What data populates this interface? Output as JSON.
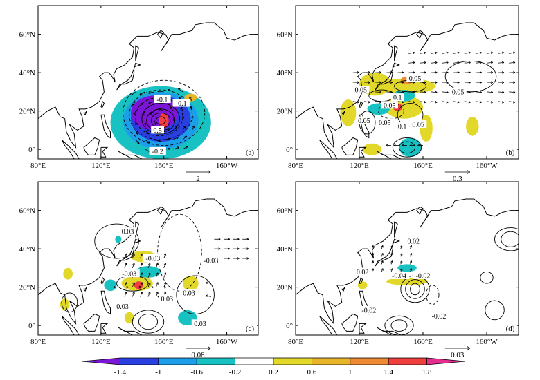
{
  "chart_data": {
    "type": "heatmap",
    "colorbar": {
      "ticks": [
        "-1.4",
        "-1",
        "-0.6",
        "-0.2",
        "0.2",
        "0.6",
        "1",
        "1.4",
        "1.8"
      ],
      "colors": [
        "#7b16d6",
        "#2a3fe0",
        "#1c9fe8",
        "#19c2c2",
        "#ffffff",
        "#e2d82a",
        "#e6b52a",
        "#ee8a32",
        "#ef3e3e",
        "#e62c8e"
      ]
    },
    "panels": [
      {
        "id": "a",
        "label": "(a)",
        "lat_ticks": [
          "0°",
          "20°N",
          "40°N",
          "60°N"
        ],
        "lon_ticks": [
          "80°E",
          "120°E",
          "160°E",
          "160°W"
        ],
        "ref_vector": "2",
        "contour_labels": [
          "-0.1",
          "-0.1",
          "0.5",
          "-0.2"
        ],
        "shading": [
          {
            "color": "#19c2c2",
            "lon": 158,
            "lat": 14,
            "rlon": 32,
            "rlat": 19
          },
          {
            "color": "#1c9fe8",
            "lon": 158,
            "lat": 15,
            "rlon": 24,
            "rlat": 15
          },
          {
            "color": "#2a3fe0",
            "lon": 158,
            "lat": 16,
            "rlon": 19,
            "rlat": 12
          },
          {
            "color": "#7b16d6",
            "lon": 154,
            "lat": 19,
            "rlon": 15,
            "rlat": 9
          },
          {
            "color": "#ef3e3e",
            "lon": 160,
            "lat": 15,
            "rlon": 3,
            "rlat": 4
          },
          {
            "color": "#e6b52a",
            "lon": 177,
            "lat": 27,
            "rlon": 4,
            "rlat": 2
          }
        ]
      },
      {
        "id": "b",
        "label": "(b)",
        "lat_ticks": [
          "0°",
          "20°N",
          "40°N",
          "60°N"
        ],
        "lon_ticks": [
          "80°E",
          "120°E",
          "160°E",
          "160°W"
        ],
        "ref_vector": "0.3",
        "contour_labels": [
          "0.05",
          "0.05",
          "0.05",
          "0.05",
          "0.1",
          "0.05",
          "0.05",
          "0.1",
          "0.05"
        ],
        "shading": [
          {
            "color": "#e2d82a",
            "lon": 130,
            "lat": 34,
            "rlon": 10,
            "rlat": 6
          },
          {
            "color": "#e2d82a",
            "lon": 150,
            "lat": 33,
            "rlon": 18,
            "rlat": 4
          },
          {
            "color": "#e2d82a",
            "lon": 113,
            "lat": 19,
            "rlon": 5,
            "rlat": 7
          },
          {
            "color": "#e2d82a",
            "lon": 148,
            "lat": 22,
            "rlon": 12,
            "rlat": 6
          },
          {
            "color": "#e2d82a",
            "lon": 162,
            "lat": 11,
            "rlon": 4,
            "rlat": 7
          },
          {
            "color": "#e2d82a",
            "lon": 191,
            "lat": 12,
            "rlon": 4,
            "rlat": 5
          },
          {
            "color": "#e2d82a",
            "lon": 128,
            "lat": 0,
            "rlon": 6,
            "rlat": 3
          },
          {
            "color": "#19c2c2",
            "lon": 148,
            "lat": 28,
            "rlon": 7,
            "rlat": 3
          },
          {
            "color": "#19c2c2",
            "lon": 132,
            "lat": 21,
            "rlon": 7,
            "rlat": 3
          },
          {
            "color": "#19c2c2",
            "lon": 152,
            "lat": 1,
            "rlon": 7,
            "rlat": 5
          },
          {
            "color": "#ef3e3e",
            "lon": 144,
            "lat": 22,
            "rlon": 3,
            "rlat": 2
          },
          {
            "color": "#ee8a32",
            "lon": 150,
            "lat": 36,
            "rlon": 4,
            "rlat": 2
          }
        ]
      },
      {
        "id": "c",
        "label": "(c)",
        "lat_ticks": [
          "0°",
          "20°N",
          "40°N",
          "60°N"
        ],
        "lon_ticks": [
          "80°E",
          "120°E",
          "160°E",
          "160°W"
        ],
        "ref_vector": "0.08",
        "contour_labels": [
          "0.03",
          "0.03",
          "-0.03",
          "0.03",
          "-0.03",
          "-0.03",
          "0.03",
          "-0.03"
        ],
        "shading": [
          {
            "color": "#e2d82a",
            "lon": 147,
            "lat": 36,
            "rlon": 8,
            "rlat": 3
          },
          {
            "color": "#e2d82a",
            "lon": 143,
            "lat": 22,
            "rlon": 10,
            "rlat": 4
          },
          {
            "color": "#e2d82a",
            "lon": 99,
            "lat": 27,
            "rlon": 3,
            "rlat": 3
          },
          {
            "color": "#e2d82a",
            "lon": 177,
            "lat": 22,
            "rlon": 5,
            "rlat": 4
          },
          {
            "color": "#e2d82a",
            "lon": 97,
            "lat": 11,
            "rlon": 3,
            "rlat": 3
          },
          {
            "color": "#e2d82a",
            "lon": 138,
            "lat": 4,
            "rlon": 3,
            "rlat": 3
          },
          {
            "color": "#19c2c2",
            "lon": 150,
            "lat": 28,
            "rlon": 8,
            "rlat": 3
          },
          {
            "color": "#19c2c2",
            "lon": 126,
            "lat": 21,
            "rlon": 4,
            "rlat": 3
          },
          {
            "color": "#19c2c2",
            "lon": 175,
            "lat": 4,
            "rlon": 6,
            "rlat": 4
          },
          {
            "color": "#19c2c2",
            "lon": 131,
            "lat": 45,
            "rlon": 2,
            "rlat": 2
          },
          {
            "color": "#ef3e3e",
            "lon": 144,
            "lat": 21,
            "rlon": 3,
            "rlat": 2
          }
        ]
      },
      {
        "id": "d",
        "label": "(d)",
        "lat_ticks": [
          "0°",
          "20°N",
          "40°N",
          "60°N"
        ],
        "lon_ticks": [
          "80°E",
          "120°E",
          "160°E",
          "160°W"
        ],
        "ref_vector": "0.03",
        "contour_labels": [
          "0.02",
          "0.02",
          "-0.04",
          "-0.02",
          "-0.02",
          "-0.02"
        ],
        "shading": [
          {
            "color": "#e2d82a",
            "lon": 150,
            "lat": 23,
            "rlon": 13,
            "rlat": 2
          },
          {
            "color": "#e2d82a",
            "lon": 122,
            "lat": 21,
            "rlon": 3,
            "rlat": 2
          },
          {
            "color": "#19c2c2",
            "lon": 150,
            "lat": 30,
            "rlon": 6,
            "rlat": 2
          }
        ]
      }
    ]
  }
}
